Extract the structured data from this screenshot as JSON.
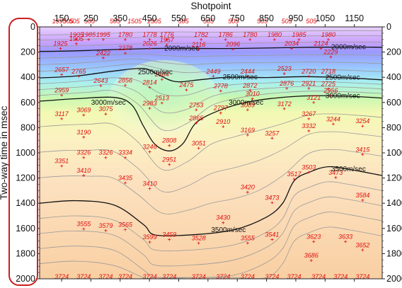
{
  "chart_data": {
    "type": "heatmap",
    "title": "",
    "xlabel": "Shotpoint",
    "ylabel": "Two-way time in msec",
    "xlim": [
      75,
      1245
    ],
    "ylim": [
      2000,
      0
    ],
    "x_ticks": [
      150,
      250,
      350,
      450,
      550,
      650,
      750,
      850,
      950,
      1050,
      1150
    ],
    "y_ticks": [
      0,
      200,
      400,
      600,
      800,
      1000,
      1200,
      1400,
      1600,
      1800,
      2000
    ],
    "grid": false,
    "contours": [
      {
        "label": "2000m/sec",
        "points": [
          [
            75,
            195
          ],
          [
            200,
            190
          ],
          [
            330,
            180
          ],
          [
            450,
            172
          ],
          [
            560,
            170
          ],
          [
            700,
            172
          ],
          [
            840,
            168
          ],
          [
            1000,
            162
          ],
          [
            1150,
            160
          ],
          [
            1245,
            162
          ]
        ]
      },
      {
        "label": "2500m/sec",
        "points": [
          [
            75,
            405
          ],
          [
            200,
            390
          ],
          [
            330,
            350
          ],
          [
            430,
            330
          ],
          [
            480,
            380
          ],
          [
            540,
            435
          ],
          [
            620,
            420
          ],
          [
            720,
            400
          ],
          [
            850,
            402
          ],
          [
            980,
            395
          ],
          [
            1100,
            402
          ],
          [
            1245,
            420
          ]
        ]
      },
      {
        "label": "3000m/sec",
        "points": [
          [
            75,
            590
          ],
          [
            200,
            570
          ],
          [
            330,
            560
          ],
          [
            390,
            620
          ],
          [
            430,
            790
          ],
          [
            470,
            935
          ],
          [
            520,
            985
          ],
          [
            565,
            925
          ],
          [
            610,
            760
          ],
          [
            690,
            662
          ],
          [
            780,
            600
          ],
          [
            880,
            565
          ],
          [
            1000,
            547
          ],
          [
            1120,
            550
          ],
          [
            1245,
            565
          ]
        ]
      },
      {
        "label": "3500m/sec",
        "points": [
          [
            75,
            1400
          ],
          [
            200,
            1380
          ],
          [
            330,
            1415
          ],
          [
            430,
            1570
          ],
          [
            470,
            1652
          ],
          [
            600,
            1650
          ],
          [
            740,
            1610
          ],
          [
            850,
            1510
          ],
          [
            905,
            1400
          ],
          [
            945,
            1220
          ],
          [
            1000,
            1150
          ],
          [
            1060,
            1110
          ],
          [
            1130,
            1130
          ],
          [
            1245,
            1180
          ]
        ]
      }
    ],
    "labels_top": [
      {
        "x": 80,
        "y": -15,
        "v": "1995"
      },
      {
        "x": 116,
        "y": -15,
        "v": "505"
      },
      {
        "x": 142,
        "y": -15,
        "v": "505"
      },
      {
        "x": 204,
        "y": -15,
        "v": "505"
      },
      {
        "x": 308,
        "y": -15,
        "v": "505"
      },
      {
        "x": 388,
        "y": -15,
        "v": "1505"
      },
      {
        "x": 468,
        "y": -15,
        "v": "1505"
      },
      {
        "x": 588,
        "y": -15,
        "v": "505"
      },
      {
        "x": 690,
        "y": -15,
        "v": "505"
      },
      {
        "x": 792,
        "y": -15,
        "v": "505"
      },
      {
        "x": 910,
        "y": -15,
        "v": "505"
      },
      {
        "x": 1010,
        "y": -15,
        "v": "505"
      },
      {
        "x": 1110,
        "y": -15,
        "v": "505"
      }
    ],
    "labels": [
      {
        "x": 150,
        "y": 80,
        "v": "1905"
      },
      {
        "x": 200,
        "y": 80,
        "v": "1985"
      },
      {
        "x": 260,
        "y": 80,
        "v": "1995"
      },
      {
        "x": 350,
        "y": 80,
        "v": "1780"
      },
      {
        "x": 450,
        "y": 80,
        "v": "1778"
      },
      {
        "x": 520,
        "y": 80,
        "v": "1776"
      },
      {
        "x": 660,
        "y": 80,
        "v": "1782"
      },
      {
        "x": 760,
        "y": 80,
        "v": "1786"
      },
      {
        "x": 860,
        "y": 80,
        "v": "1780"
      },
      {
        "x": 960,
        "y": 80,
        "v": "1980"
      },
      {
        "x": 1060,
        "y": 80,
        "v": "1985"
      },
      {
        "x": 1180,
        "y": 80,
        "v": "1980"
      },
      {
        "x": 150,
        "y": 120,
        "v": "1905"
      },
      {
        "x": 520,
        "y": 130,
        "v": "1957"
      },
      {
        "x": 85,
        "y": 165,
        "v": "1925"
      },
      {
        "x": 450,
        "y": 165,
        "v": "2026"
      },
      {
        "x": 650,
        "y": 175,
        "v": "2116"
      },
      {
        "x": 790,
        "y": 172,
        "v": "2096"
      },
      {
        "x": 1030,
        "y": 165,
        "v": "2034"
      },
      {
        "x": 1150,
        "y": 165,
        "v": "2124"
      },
      {
        "x": 350,
        "y": 210,
        "v": "2378"
      },
      {
        "x": 260,
        "y": 255,
        "v": "2422"
      },
      {
        "x": 1190,
        "y": 245,
        "v": "2229"
      },
      {
        "x": 90,
        "y": 415,
        "v": "2657"
      },
      {
        "x": 160,
        "y": 430,
        "v": "2765"
      },
      {
        "x": 500,
        "y": 460,
        "v": "2384"
      },
      {
        "x": 710,
        "y": 430,
        "v": "2449"
      },
      {
        "x": 850,
        "y": 430,
        "v": "2444"
      },
      {
        "x": 1000,
        "y": 405,
        "v": "2523"
      },
      {
        "x": 1100,
        "y": 430,
        "v": "2720"
      },
      {
        "x": 1180,
        "y": 430,
        "v": "2718"
      },
      {
        "x": 250,
        "y": 520,
        "v": "2643"
      },
      {
        "x": 350,
        "y": 515,
        "v": "2856"
      },
      {
        "x": 450,
        "y": 535,
        "v": "2814"
      },
      {
        "x": 600,
        "y": 560,
        "v": "2475"
      },
      {
        "x": 740,
        "y": 570,
        "v": "2778"
      },
      {
        "x": 860,
        "y": 565,
        "v": "2872"
      },
      {
        "x": 1010,
        "y": 545,
        "v": "2876"
      },
      {
        "x": 1100,
        "y": 545,
        "v": "2921"
      },
      {
        "x": 1180,
        "y": 550,
        "v": "2725"
      },
      {
        "x": 90,
        "y": 610,
        "v": "2959"
      },
      {
        "x": 870,
        "y": 645,
        "v": "3010"
      },
      {
        "x": 1190,
        "y": 615,
        "v": "2956"
      },
      {
        "x": 500,
        "y": 685,
        "v": "2513"
      },
      {
        "x": 450,
        "y": 735,
        "v": "2983"
      },
      {
        "x": 640,
        "y": 750,
        "v": "2753"
      },
      {
        "x": 740,
        "y": 780,
        "v": "2797"
      },
      {
        "x": 850,
        "y": 750,
        "v": "3089"
      },
      {
        "x": 1000,
        "y": 740,
        "v": "3172"
      },
      {
        "x": 1120,
        "y": 680,
        "v": "3121"
      },
      {
        "x": 180,
        "y": 800,
        "v": "3069"
      },
      {
        "x": 270,
        "y": 790,
        "v": "3075"
      },
      {
        "x": 90,
        "y": 835,
        "v": "3117"
      },
      {
        "x": 640,
        "y": 875,
        "v": "2865"
      },
      {
        "x": 750,
        "y": 910,
        "v": "2910"
      },
      {
        "x": 1100,
        "y": 835,
        "v": "3267"
      },
      {
        "x": 1200,
        "y": 885,
        "v": "3244"
      },
      {
        "x": 1320,
        "y": 905,
        "v": "3254"
      },
      {
        "x": 850,
        "y": 990,
        "v": "3169"
      },
      {
        "x": 1100,
        "y": 950,
        "v": "3332"
      },
      {
        "x": 180,
        "y": 1010,
        "v": "3190"
      },
      {
        "x": 950,
        "y": 1020,
        "v": "3257"
      },
      {
        "x": 530,
        "y": 1090,
        "v": "2808"
      },
      {
        "x": 650,
        "y": 1115,
        "v": "3051"
      },
      {
        "x": 450,
        "y": 1150,
        "v": "3246"
      },
      {
        "x": 1320,
        "y": 1175,
        "v": "3415"
      },
      {
        "x": 180,
        "y": 1205,
        "v": "3326"
      },
      {
        "x": 270,
        "y": 1205,
        "v": "3326"
      },
      {
        "x": 350,
        "y": 1205,
        "v": "3334"
      },
      {
        "x": 530,
        "y": 1270,
        "v": "2951"
      },
      {
        "x": 90,
        "y": 1285,
        "v": "3351"
      },
      {
        "x": 180,
        "y": 1375,
        "v": "3410"
      },
      {
        "x": 350,
        "y": 1445,
        "v": "3435"
      },
      {
        "x": 450,
        "y": 1500,
        "v": "3410"
      },
      {
        "x": 850,
        "y": 1535,
        "v": "3420"
      },
      {
        "x": 1100,
        "y": 1345,
        "v": "3503"
      },
      {
        "x": 1210,
        "y": 1395,
        "v": "3473"
      },
      {
        "x": 1040,
        "y": 1410,
        "v": "3517"
      },
      {
        "x": 950,
        "y": 1635,
        "v": "3473"
      },
      {
        "x": 750,
        "y": 1825,
        "v": "3430"
      },
      {
        "x": 1320,
        "y": 1610,
        "v": "3584"
      },
      {
        "x": 180,
        "y": 1885,
        "v": "3555"
      },
      {
        "x": 270,
        "y": 1900,
        "v": "3579"
      },
      {
        "x": 350,
        "y": 1890,
        "v": "3565"
      },
      {
        "x": 530,
        "y": 1985,
        "v": "3459"
      },
      {
        "x": 450,
        "y": 2010,
        "v": "3599"
      },
      {
        "x": 650,
        "y": 2020,
        "v": "3528"
      },
      {
        "x": 850,
        "y": 2020,
        "v": "3555"
      },
      {
        "x": 950,
        "y": 1985,
        "v": "3541"
      },
      {
        "x": 1120,
        "y": 2005,
        "v": "3623"
      },
      {
        "x": 1250,
        "y": 2005,
        "v": "3633"
      },
      {
        "x": 1320,
        "y": 2085,
        "v": "3652"
      },
      {
        "x": 1110,
        "y": 2185,
        "v": "3686"
      },
      {
        "x": 90,
        "y": 2400,
        "v": "3724"
      },
      {
        "x": 180,
        "y": 2400,
        "v": "3724"
      },
      {
        "x": 270,
        "y": 2400,
        "v": "3724"
      },
      {
        "x": 350,
        "y": 2400,
        "v": "3724"
      },
      {
        "x": 450,
        "y": 2400,
        "v": "3724"
      },
      {
        "x": 530,
        "y": 2400,
        "v": "3724"
      },
      {
        "x": 650,
        "y": 2400,
        "v": "3724"
      },
      {
        "x": 750,
        "y": 2400,
        "v": "3724"
      },
      {
        "x": 850,
        "y": 2400,
        "v": "3724"
      },
      {
        "x": 950,
        "y": 2400,
        "v": "3724"
      },
      {
        "x": 1040,
        "y": 2400,
        "v": "3724"
      },
      {
        "x": 1140,
        "y": 2400,
        "v": "3724"
      },
      {
        "x": 1230,
        "y": 2400,
        "v": "3724"
      },
      {
        "x": 1320,
        "y": 2400,
        "v": "3724"
      }
    ],
    "highlight": "y-axis"
  },
  "colors": {
    "contour_major": "#111111",
    "contour_minor": "#9a9a9a",
    "value_label": "#e01010",
    "highlight_outline": "#cc1e1e"
  }
}
